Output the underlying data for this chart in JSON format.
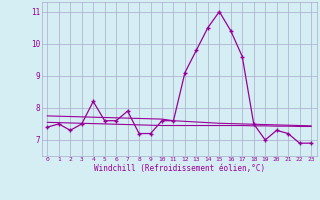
{
  "x": [
    0,
    1,
    2,
    3,
    4,
    5,
    6,
    7,
    8,
    9,
    10,
    11,
    12,
    13,
    14,
    15,
    16,
    17,
    18,
    19,
    20,
    21,
    22,
    23
  ],
  "windchill": [
    7.4,
    7.5,
    7.3,
    7.5,
    8.2,
    7.6,
    7.6,
    7.9,
    7.2,
    7.2,
    7.6,
    7.6,
    9.1,
    9.8,
    10.5,
    11.0,
    10.4,
    9.6,
    7.5,
    7.0,
    7.3,
    7.2,
    6.9,
    6.9
  ],
  "reg1": [
    7.55,
    7.54,
    7.53,
    7.52,
    7.51,
    7.5,
    7.49,
    7.48,
    7.47,
    7.46,
    7.45,
    7.45,
    7.45,
    7.45,
    7.45,
    7.45,
    7.45,
    7.45,
    7.44,
    7.44,
    7.43,
    7.43,
    7.42,
    7.42
  ],
  "reg2": [
    7.75,
    7.74,
    7.73,
    7.72,
    7.71,
    7.7,
    7.69,
    7.68,
    7.67,
    7.66,
    7.65,
    7.6,
    7.58,
    7.56,
    7.54,
    7.52,
    7.51,
    7.5,
    7.49,
    7.48,
    7.47,
    7.46,
    7.45,
    7.44
  ],
  "line_color": "#990099",
  "bg_color": "#d4eef4",
  "grid_color": "#aaaacc",
  "xlabel": "Windchill (Refroidissement éolien,°C)",
  "ylim_min": 6.5,
  "ylim_max": 11.3,
  "yticks": [
    7,
    8,
    9,
    10,
    11
  ],
  "xticks": [
    0,
    1,
    2,
    3,
    4,
    5,
    6,
    7,
    8,
    9,
    10,
    11,
    12,
    13,
    14,
    15,
    16,
    17,
    18,
    19,
    20,
    21,
    22,
    23
  ]
}
